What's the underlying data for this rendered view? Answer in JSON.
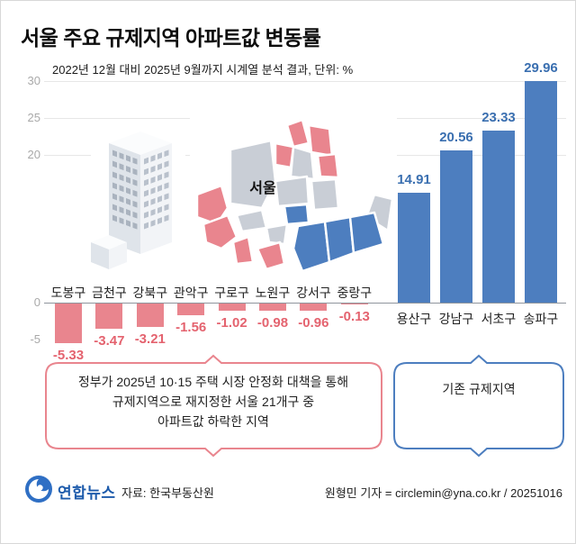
{
  "page": {
    "title": "서울 주요 규제지역 아파트값 변동률",
    "subtitle": "2022년 12월 대비 2025년 9월까지 시계열 분석 결과, 단위: %"
  },
  "map": {
    "label": "서울"
  },
  "illustrations": {
    "building": "office-building-illustration",
    "map": "seoul-district-map-illustration"
  },
  "chart_data": {
    "type": "bar",
    "title": "서울 주요 규제지역 아파트값 변동률",
    "unit": "%",
    "categories": [
      "도봉구",
      "금천구",
      "강북구",
      "관악구",
      "구로구",
      "노원구",
      "강서구",
      "중랑구",
      "용산구",
      "강남구",
      "서초구",
      "송파구"
    ],
    "values": [
      -5.33,
      -3.47,
      -3.21,
      -1.56,
      -1.02,
      -0.98,
      -0.96,
      -0.13,
      14.91,
      20.56,
      23.33,
      29.96
    ],
    "value_labels": [
      "-5.33",
      "-3.47",
      "-3.21",
      "-1.56",
      "-1.02",
      "-0.98",
      "-0.96",
      "-0.13",
      "14.91",
      "20.56",
      "23.33",
      "29.96"
    ],
    "yticks": [
      30,
      25,
      20,
      0,
      -5
    ],
    "ylim": [
      -5,
      30
    ],
    "grid": "partial-horizontal",
    "legend": "none",
    "colors": {
      "negative": "#e9858e",
      "positive": "#4d7ebf",
      "negative_label": "#e4636f",
      "positive_label": "#3a6fb0",
      "axis": "#8f959c",
      "tick": "#a9a9a9"
    }
  },
  "annotations": {
    "declining": {
      "lines": [
        "정부가 2025년 10·15 주택 시장 안정화 대책을 통해",
        "규제지역으로 재지정한 서울 21개구 중",
        "아파트값 하락한 지역"
      ],
      "color": "#e9858e"
    },
    "existing": {
      "label": "기존 규제지역",
      "color": "#4d7ebf"
    }
  },
  "footer": {
    "logo_icon": "yonhap-logo-icon",
    "logo": "연합뉴스",
    "source": "자료: 한국부동산원",
    "credit": "원형민 기자 = circlemin@yna.co.kr / 20251016"
  }
}
